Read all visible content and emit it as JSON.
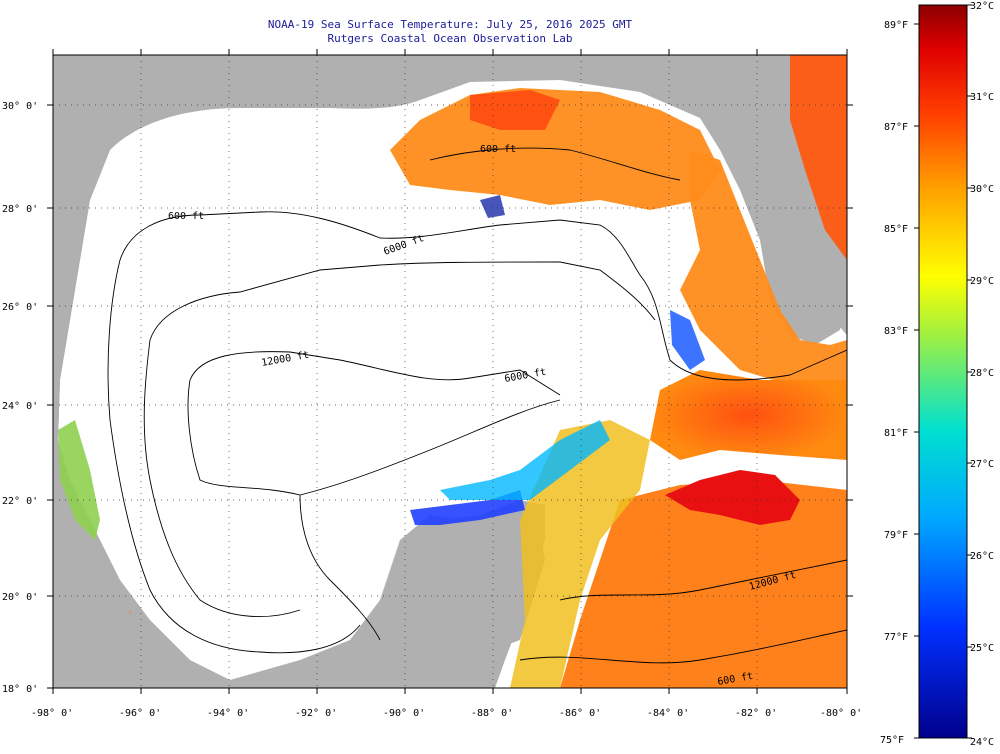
{
  "title": {
    "line1": "NOAA-19 Sea Surface Temperature:  July 25, 2016 2025 GMT",
    "line2": "Rutgers Coastal Ocean Observation Lab"
  },
  "map": {
    "lon_range": [
      -98,
      -80
    ],
    "lat_range": [
      18,
      31
    ],
    "lon_ticks": [
      "-98° 0'",
      "-96° 0'",
      "-94° 0'",
      "-92° 0'",
      "-90° 0'",
      "-88° 0'",
      "-86° 0'",
      "-84° 0'",
      "-82° 0'",
      "-80° 0'"
    ],
    "lat_ticks": [
      "18° 0'",
      "20° 0'",
      "22° 0'",
      "24° 0'",
      "26° 0'",
      "28° 0'",
      "30° 0'"
    ],
    "contour_labels": [
      "600 ft",
      "600 ft",
      "6000 ft",
      "12000 ft",
      "6000 ft",
      "12000 ft",
      "600 ft"
    ],
    "colors": {
      "land": "#b0b0b0",
      "cloud": "#ffffff"
    }
  },
  "colorbar": {
    "celsius_labels": [
      "32°C",
      "31°C",
      "30°C",
      "29°C",
      "28°C",
      "27°C",
      "26°C",
      "25°C",
      "24°C"
    ],
    "fahrenheit_labels": [
      "89°F",
      "87°F",
      "85°F",
      "83°F",
      "81°F",
      "79°F",
      "77°F",
      "75°F"
    ]
  }
}
